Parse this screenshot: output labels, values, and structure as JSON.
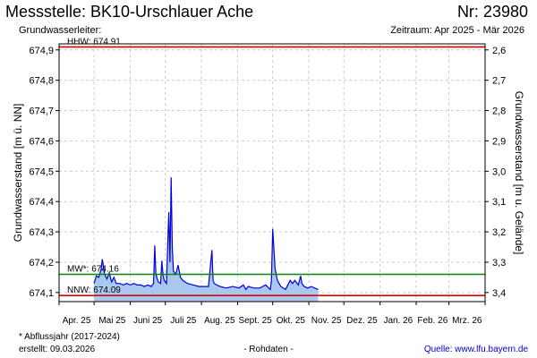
{
  "header": {
    "title": "Messstelle: BK10-Urschlauer Ache",
    "number": "Nr: 23980",
    "subtitle": "Grundwasserleiter:",
    "period": "Zeitraum: Apr 2025 - Mär 2026"
  },
  "footer": {
    "footnote": "* Abflussjahr (2017-2024)",
    "created": "erstellt:  09.03.2026",
    "raw": "- Rohdaten -",
    "source": "Quelle: www.lfu.bayern.de"
  },
  "colors": {
    "hhw": "#dd0000",
    "nnw": "#dd0000",
    "mw": "#008800",
    "series_line": "#0000dd",
    "series_fill": "#a8c8ee",
    "grid": "#cccccc"
  },
  "chart_data": {
    "type": "area",
    "ylabel": "Grundwasserstand [m ü. NN]",
    "ylabel_right": "Grundwasserstand [m u. Gelände]",
    "ylim": [
      674.07,
      674.92
    ],
    "y_ticks": [
      "674,9",
      "674,8",
      "674,7",
      "674,6",
      "674,5",
      "674,4",
      "674,3",
      "674,2",
      "674,1"
    ],
    "y_right_ticks": [
      "2,6",
      "2,7",
      "2,8",
      "2,9",
      "3,0",
      "3,1",
      "3,2",
      "3,3",
      "3,4"
    ],
    "x_ticks": [
      "Apr. 25",
      "Mai 25",
      "Juni 25",
      "Juli 25",
      "Aug. 25",
      "Sept. 25",
      "Okt. 25",
      "Nov. 25",
      "Dez. 25",
      "Jan. 26",
      "Feb. 26",
      "Mrz. 26"
    ],
    "grid": true,
    "reference_lines": [
      {
        "label": "HHW: 674.91",
        "value": 674.91
      },
      {
        "label": "MW*: 674.16",
        "value": 674.16
      },
      {
        "label": "NNW: 674.09",
        "value": 674.09
      }
    ],
    "series": [
      {
        "x": [
          "2025-05-01",
          "2025-05-03",
          "2025-05-05",
          "2025-05-07",
          "2025-05-08",
          "2025-05-10",
          "2025-05-12",
          "2025-05-14",
          "2025-05-16",
          "2025-05-18",
          "2025-05-20",
          "2025-05-23",
          "2025-05-26",
          "2025-05-29",
          "2025-06-01",
          "2025-06-04",
          "2025-06-07",
          "2025-06-10",
          "2025-06-13",
          "2025-06-16",
          "2025-06-19",
          "2025-06-21",
          "2025-06-22",
          "2025-06-23",
          "2025-06-25",
          "2025-06-27",
          "2025-06-28",
          "2025-06-29",
          "2025-06-30",
          "2025-07-01",
          "2025-07-02",
          "2025-07-04",
          "2025-07-05",
          "2025-07-06",
          "2025-07-07",
          "2025-07-08",
          "2025-07-10",
          "2025-07-12",
          "2025-07-13",
          "2025-07-14",
          "2025-07-16",
          "2025-07-18",
          "2025-07-20",
          "2025-07-25",
          "2025-07-30",
          "2025-08-03",
          "2025-08-07",
          "2025-08-10",
          "2025-08-11",
          "2025-08-12",
          "2025-08-14",
          "2025-08-17",
          "2025-08-22",
          "2025-08-28",
          "2025-09-02",
          "2025-09-06",
          "2025-09-08",
          "2025-09-10",
          "2025-09-15",
          "2025-09-20",
          "2025-09-25",
          "2025-09-29",
          "2025-09-30",
          "2025-10-01",
          "2025-10-03",
          "2025-10-05",
          "2025-10-08",
          "2025-10-12",
          "2025-10-16",
          "2025-10-18",
          "2025-10-20",
          "2025-10-23",
          "2025-10-25",
          "2025-10-26",
          "2025-10-28",
          "2025-10-31",
          "2025-11-03",
          "2025-11-06",
          "2025-11-09"
        ],
        "values": [
          674.13,
          674.155,
          674.15,
          674.175,
          674.21,
          674.16,
          674.145,
          674.165,
          674.135,
          674.15,
          674.13,
          674.13,
          674.125,
          674.13,
          674.125,
          674.13,
          674.125,
          674.125,
          674.12,
          674.125,
          674.12,
          674.13,
          674.255,
          674.16,
          674.135,
          674.13,
          674.205,
          674.16,
          674.14,
          674.135,
          674.13,
          674.365,
          674.2,
          674.48,
          674.25,
          674.17,
          674.16,
          674.19,
          674.17,
          674.15,
          674.14,
          674.135,
          674.13,
          674.125,
          674.12,
          674.12,
          674.12,
          674.24,
          674.14,
          674.13,
          674.125,
          674.12,
          674.115,
          674.12,
          674.115,
          674.125,
          674.11,
          674.12,
          674.115,
          674.115,
          674.125,
          674.11,
          674.14,
          674.31,
          674.18,
          674.14,
          674.12,
          674.11,
          674.14,
          674.13,
          674.14,
          674.125,
          674.155,
          674.13,
          674.12,
          674.115,
          674.12,
          674.115,
          674.11
        ]
      }
    ]
  }
}
